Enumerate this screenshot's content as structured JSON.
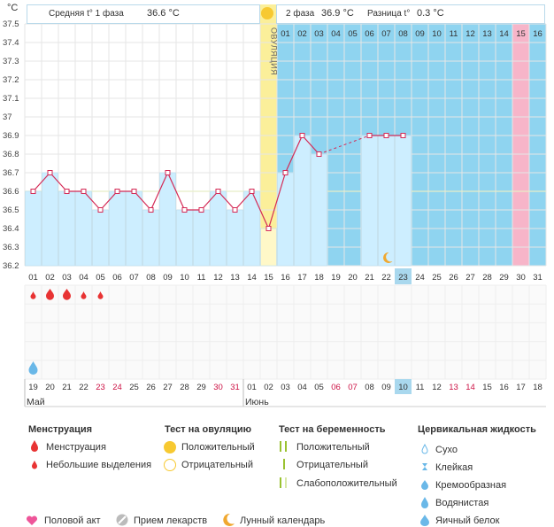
{
  "unit_label": "°C",
  "header": {
    "phase1_label": "Средняя t° 1 фаза",
    "phase1_value": "36.6 °C",
    "phase2_label": "2 фаза",
    "phase2_value": "36.9 °C",
    "diff_label": "Разница t°",
    "diff_value": "0.3 °C"
  },
  "ovulation_label": "ОВУЛЯЦИЯ",
  "colors": {
    "before_bg": "#ffffff",
    "after_bg": "#8fd4f0",
    "bar_fill": "#cdeeff",
    "line": "#d42a56",
    "coverline": "#e8eec8",
    "ovulation_band": "#fbef9a",
    "highlight_col": "#f7b5c9",
    "today_box": "#a9d8ee",
    "weekend_text": "#cc1144",
    "menstruation": "#e83333",
    "watery": "#6ab8e8",
    "sun": "#f7c931",
    "moon": "#f0a830",
    "heart": "#ee5599"
  },
  "chart_data": {
    "type": "line",
    "title": "",
    "xlabel": "",
    "ylabel": "°C",
    "ylim": [
      36.2,
      37.5
    ],
    "yticks": [
      "36.2",
      "36.3",
      "36.4",
      "36.5",
      "36.6",
      "36.7",
      "36.8",
      "36.9",
      "37",
      "37.1",
      "37.2",
      "37.3",
      "37.4",
      "37.5"
    ],
    "cycle_days": [
      "01",
      "02",
      "03",
      "04",
      "05",
      "06",
      "07",
      "08",
      "09",
      "10",
      "11",
      "12",
      "13",
      "14",
      "15",
      "16",
      "17",
      "18",
      "19",
      "20",
      "21",
      "22",
      "23",
      "24",
      "25",
      "26",
      "27",
      "28",
      "29",
      "30",
      "31"
    ],
    "phase2_day_labels": [
      "01",
      "02",
      "03",
      "04",
      "05",
      "06",
      "07",
      "08",
      "09",
      "10",
      "11",
      "12",
      "13",
      "14",
      "15",
      "16"
    ],
    "dates": [
      "19",
      "20",
      "21",
      "22",
      "23",
      "24",
      "25",
      "26",
      "27",
      "28",
      "29",
      "30",
      "31",
      "01",
      "02",
      "03",
      "04",
      "05",
      "06",
      "07",
      "08",
      "09",
      "10",
      "11",
      "12",
      "13",
      "14",
      "15",
      "16",
      "17",
      "18"
    ],
    "weekend_date_indices": [
      4,
      5,
      11,
      12,
      18,
      19,
      25,
      26
    ],
    "months": [
      {
        "name": "Май",
        "start_index": 0
      },
      {
        "name": "Июнь",
        "start_index": 13
      }
    ],
    "series": [
      {
        "values": [
          36.6,
          36.7,
          36.6,
          36.6,
          36.5,
          36.6,
          36.6,
          36.5,
          36.7,
          36.5,
          36.5,
          36.6,
          36.5,
          36.6,
          36.4,
          36.7,
          36.9,
          36.8,
          null,
          null,
          36.9,
          36.9,
          36.9,
          null,
          null,
          null,
          null,
          null,
          null,
          null,
          null
        ]
      }
    ],
    "dashed_gap": [
      17,
      20
    ],
    "coverline": 36.6,
    "ovulation_day_index": 14,
    "highlight_day_index": 29,
    "today_day_index": 22,
    "moon_day_index": 21,
    "menstruation": [
      {
        "day_index": 0,
        "size": "small"
      },
      {
        "day_index": 1,
        "size": "large"
      },
      {
        "day_index": 2,
        "size": "large"
      },
      {
        "day_index": 3,
        "size": "small"
      },
      {
        "day_index": 4,
        "size": "small"
      }
    ],
    "cervical_watery_day_index": 0
  },
  "legend": {
    "menstruation": {
      "title": "Менструация",
      "items": [
        "Менструация",
        "Небольшие выделения"
      ]
    },
    "ovulation_test": {
      "title": "Тест на овуляцию",
      "items": [
        "Положительный",
        "Отрицательный"
      ]
    },
    "pregnancy_test": {
      "title": "Тест на беременность",
      "items": [
        "Положительный",
        "Отрицательный",
        "Слабоположительный"
      ]
    },
    "cervical": {
      "title": "Цервикальная жидкость",
      "items": [
        "Сухо",
        "Клейкая",
        "Кремообразная",
        "Водянистая",
        "Яичный белок"
      ]
    },
    "bottom": [
      "Половой акт",
      "Прием лекарств",
      "Лунный календарь"
    ]
  }
}
